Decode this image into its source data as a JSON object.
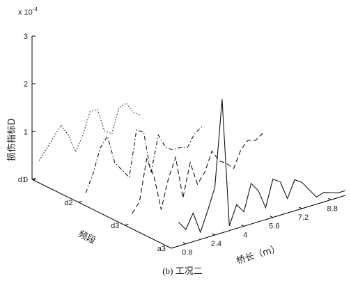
{
  "chart_data": {
    "type": "line",
    "view": "3d-waterfall",
    "caption": "(b) 工况二",
    "zlabel": "损伤指标D",
    "xlabel": "桥长（m）",
    "ylabel": "频段",
    "z_exponent": "x 10",
    "z_exponent_power": "-4",
    "z_ticks": [
      "0",
      "1",
      "2",
      "3"
    ],
    "z_range": [
      0,
      3
    ],
    "x_ticks": [
      "0.8",
      "2.4",
      "4",
      "5.6",
      "7.2",
      "8.8"
    ],
    "x_tick_values": [
      0.8,
      2.4,
      4.0,
      5.6,
      7.2,
      8.8
    ],
    "x_range": [
      0,
      9.6
    ],
    "y_ticks": [
      "d1",
      "d2",
      "d3",
      "a3"
    ],
    "grid": false,
    "series": [
      {
        "band": "d1",
        "line_style": "dotted",
        "x": [
          0.4,
          0.8,
          1.2,
          1.6,
          2.0,
          2.4,
          2.8,
          3.2,
          3.6,
          4.0,
          4.4,
          4.8,
          5.2,
          5.6,
          6.0
        ],
        "values": [
          0.35,
          0.55,
          0.75,
          0.95,
          0.7,
          0.3,
          0.6,
          1.05,
          1.05,
          0.55,
          0.45,
          0.95,
          1.0,
          0.75,
          0.65
        ]
      },
      {
        "band": "d2",
        "line_style": "dash-dot",
        "x": [
          0.4,
          0.8,
          1.2,
          1.6,
          2.0,
          2.4,
          2.8,
          3.2,
          3.6,
          4.0,
          4.4,
          4.8,
          5.2,
          5.6,
          6.0,
          6.4,
          6.8
        ],
        "values": [
          0.15,
          0.5,
          1.0,
          1.2,
          0.6,
          0.4,
          0.2,
          1.15,
          1.05,
          0.15,
          0.9,
          0.6,
          0.5,
          0.5,
          0.45,
          0.7,
          0.8
        ]
      },
      {
        "band": "d3",
        "line_style": "dashed",
        "x": [
          0.4,
          0.8,
          1.2,
          1.6,
          2.0,
          2.4,
          2.8,
          3.2,
          3.6,
          4.0,
          4.4,
          4.8,
          5.2,
          5.6,
          6.0,
          6.4,
          6.8,
          7.2,
          7.6
        ],
        "values": [
          0.2,
          0.4,
          1.25,
          0.85,
          0.1,
          0.7,
          1.1,
          0.2,
          0.9,
          0.4,
          0.6,
          1.0,
          0.75,
          0.65,
          0.5,
          0.85,
          1.0,
          0.95,
          1.05
        ]
      },
      {
        "band": "a3",
        "line_style": "solid",
        "x": [
          0.4,
          0.8,
          1.2,
          1.6,
          2.0,
          2.4,
          2.8,
          3.2,
          3.6,
          4.0,
          4.4,
          4.8,
          5.2,
          5.6,
          6.0,
          6.4,
          6.8,
          7.2,
          7.6,
          8.0,
          8.4,
          8.8,
          9.2,
          9.6
        ],
        "values": [
          0.5,
          0.3,
          0.6,
          0.15,
          0.55,
          1.0,
          2.8,
          0.1,
          0.5,
          0.3,
          0.85,
          0.65,
          0.25,
          0.8,
          0.7,
          0.3,
          0.65,
          0.55,
          0.35,
          0.15,
          0.2,
          0.15,
          0.1,
          0.1
        ]
      }
    ]
  }
}
